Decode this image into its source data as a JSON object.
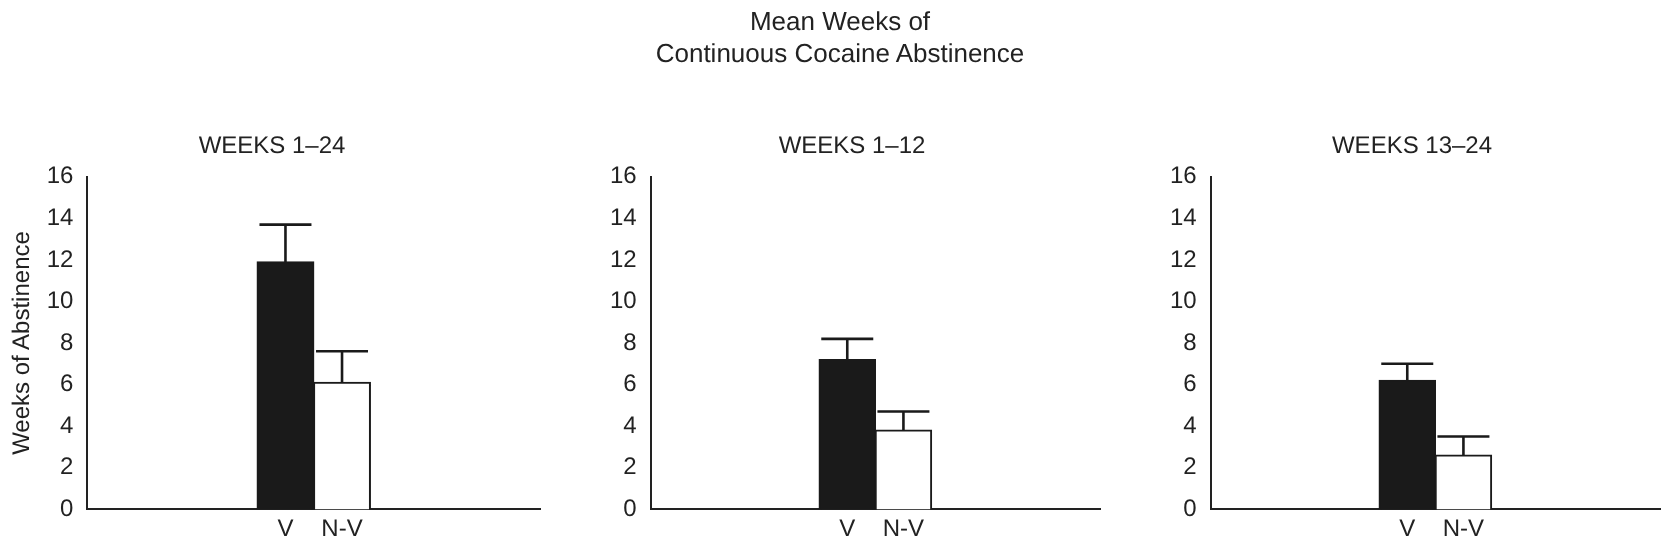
{
  "chart_data": [
    {
      "type": "bar",
      "title": "WEEKS 1–24",
      "ylabel": "Weeks of Abstinence",
      "categories": [
        "V",
        "N-V"
      ],
      "values": [
        11.9,
        6.1
      ],
      "colors": [
        "#1a1a1a",
        "#ffffff"
      ],
      "errors": [
        [
          11.9,
          13.7
        ],
        [
          6.1,
          7.6
        ]
      ],
      "ylim": [
        0,
        16
      ],
      "yticks": [
        0,
        2,
        4,
        6,
        8,
        10,
        12,
        14,
        16
      ]
    },
    {
      "type": "bar",
      "title": "Mean Weeks of\nContinuous Cocaine Abstinence",
      "subtitle": "WEEKS 1–12",
      "categories": [
        "V",
        "N-V"
      ],
      "values": [
        7.2,
        3.8
      ],
      "colors": [
        "#1a1a1a",
        "#ffffff"
      ],
      "errors": [
        [
          7.2,
          8.2
        ],
        [
          3.8,
          4.7
        ]
      ],
      "ylim": [
        0,
        16
      ],
      "yticks": [
        0,
        2,
        4,
        6,
        8,
        10,
        12,
        14,
        16
      ]
    },
    {
      "type": "bar",
      "title": "WEEKS 13–24",
      "categories": [
        "V",
        "N-V"
      ],
      "values": [
        6.2,
        2.6
      ],
      "colors": [
        "#1a1a1a",
        "#ffffff"
      ],
      "errors": [
        [
          6.2,
          7.0
        ],
        [
          2.6,
          3.5
        ]
      ],
      "ylim": [
        0,
        16
      ],
      "yticks": [
        0,
        2,
        4,
        6,
        8,
        10,
        12,
        14,
        16
      ]
    }
  ]
}
